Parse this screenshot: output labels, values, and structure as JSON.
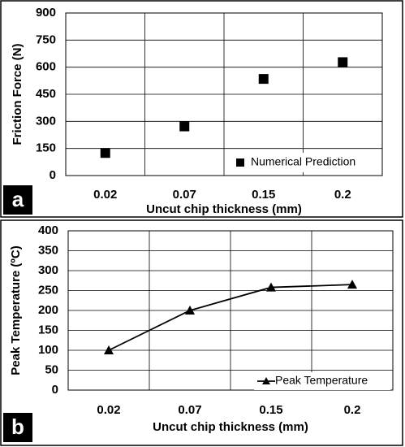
{
  "chart_data": [
    {
      "type": "scatter",
      "panel": "a",
      "y_label": "Friction Force (N)",
      "x_label": "Uncut chip thickness (mm)",
      "categories": [
        "0.02",
        "0.07",
        "0.15",
        "0.2"
      ],
      "series": [
        {
          "name": "Numerical Prediction",
          "color": "#000000",
          "values": [
            125,
            272,
            535,
            628
          ]
        }
      ],
      "ylim": [
        0,
        900
      ],
      "yticks": [
        0,
        150,
        300,
        450,
        600,
        750,
        900
      ],
      "grid": true,
      "legend": "lower right"
    },
    {
      "type": "line",
      "panel": "b",
      "y_label": "Peak Temperature (ºC)",
      "x_label": "Uncut chip thickness (mm)",
      "categories": [
        "0.02",
        "0.07",
        "0.15",
        "0.2"
      ],
      "series": [
        {
          "name": "Peak Temperature",
          "color": "#000000",
          "values": [
            100,
            200,
            258,
            265
          ]
        }
      ],
      "ylim": [
        0,
        400
      ],
      "yticks": [
        0,
        50,
        100,
        150,
        200,
        250,
        300,
        350,
        400
      ],
      "grid": true,
      "legend": "lower right"
    }
  ]
}
